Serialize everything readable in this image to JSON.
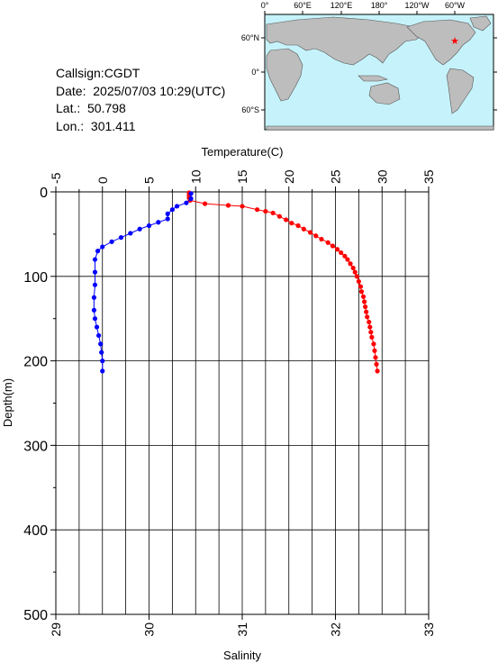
{
  "info": {
    "callsign": "Callsign:CGDT",
    "date": "Date:  2025/07/03 10:29(UTC)",
    "lat": "Lat.:  50.798",
    "lon": "Lon.:  301.411"
  },
  "map": {
    "top_labels": [
      "0°",
      "60°E",
      "120°E",
      "180°",
      "120°W",
      "60°W"
    ],
    "left_labels": [
      "60°N",
      "0°",
      "60°S"
    ],
    "ocean_color": "#c6f3fb",
    "land_color": "#bdbdbd",
    "station_marker": "red-star",
    "station_lon": 301.411,
    "station_lat": 50.798
  },
  "chart_data": {
    "type": "line",
    "title": "",
    "top_axis": {
      "label": "Temperature(C)",
      "range": [
        -5,
        35
      ],
      "ticks": [
        "-5",
        "0",
        "5",
        "10",
        "15",
        "20",
        "25",
        "30",
        "35"
      ]
    },
    "bottom_axis": {
      "label": "Salinity",
      "range": [
        29,
        33
      ],
      "ticks": [
        "29",
        "30",
        "31",
        "32",
        "33"
      ]
    },
    "left_axis": {
      "label": "Depth(m)",
      "range": [
        0,
        500
      ],
      "ticks": [
        "0",
        "100",
        "200",
        "300",
        "400",
        "500"
      ],
      "inverted": true
    },
    "grid": true,
    "series": [
      {
        "color": "#ff0000",
        "axis": "temperature",
        "points": [
          [
            9.3,
            1
          ],
          [
            9.3,
            4
          ],
          [
            9.3,
            7
          ],
          [
            9.4,
            10
          ],
          [
            11,
            14
          ],
          [
            13.5,
            16
          ],
          [
            15,
            17
          ],
          [
            16.6,
            21
          ],
          [
            17.5,
            23
          ],
          [
            18.3,
            25
          ],
          [
            19,
            29
          ],
          [
            19.7,
            33
          ],
          [
            20.3,
            37
          ],
          [
            21,
            40
          ],
          [
            21.6,
            44
          ],
          [
            22.3,
            48
          ],
          [
            22.9,
            52
          ],
          [
            23.5,
            56
          ],
          [
            24.2,
            60
          ],
          [
            24.7,
            64
          ],
          [
            25.2,
            68
          ],
          [
            25.6,
            72
          ],
          [
            26,
            76
          ],
          [
            26.3,
            80
          ],
          [
            26.6,
            85
          ],
          [
            26.9,
            90
          ],
          [
            27.1,
            95
          ],
          [
            27.3,
            100
          ],
          [
            27.5,
            106
          ],
          [
            27.7,
            112
          ],
          [
            27.8,
            118
          ],
          [
            28,
            124
          ],
          [
            28.1,
            130
          ],
          [
            28.2,
            136
          ],
          [
            28.3,
            142
          ],
          [
            28.4,
            148
          ],
          [
            28.6,
            154
          ],
          [
            28.7,
            160
          ],
          [
            28.8,
            166
          ],
          [
            28.9,
            172
          ],
          [
            29.1,
            180
          ],
          [
            29.2,
            188
          ],
          [
            29.3,
            196
          ],
          [
            29.4,
            204
          ],
          [
            29.5,
            212
          ]
        ]
      },
      {
        "color": "#0000ff",
        "axis": "salinity",
        "points": [
          [
            30.45,
            2
          ],
          [
            30.45,
            8
          ],
          [
            30.4,
            13
          ],
          [
            30.3,
            17
          ],
          [
            30.25,
            21
          ],
          [
            30.2,
            26
          ],
          [
            30.2,
            32
          ],
          [
            30.1,
            36
          ],
          [
            30.0,
            40
          ],
          [
            29.9,
            44
          ],
          [
            29.8,
            49
          ],
          [
            29.7,
            54
          ],
          [
            29.6,
            59
          ],
          [
            29.5,
            65
          ],
          [
            29.45,
            70
          ],
          [
            29.42,
            80
          ],
          [
            29.42,
            95
          ],
          [
            29.42,
            110
          ],
          [
            29.41,
            125
          ],
          [
            29.41,
            140
          ],
          [
            29.42,
            150
          ],
          [
            29.44,
            160
          ],
          [
            29.46,
            170
          ],
          [
            29.48,
            180
          ],
          [
            29.49,
            190
          ],
          [
            29.5,
            200
          ],
          [
            29.5,
            212
          ]
        ]
      }
    ]
  }
}
